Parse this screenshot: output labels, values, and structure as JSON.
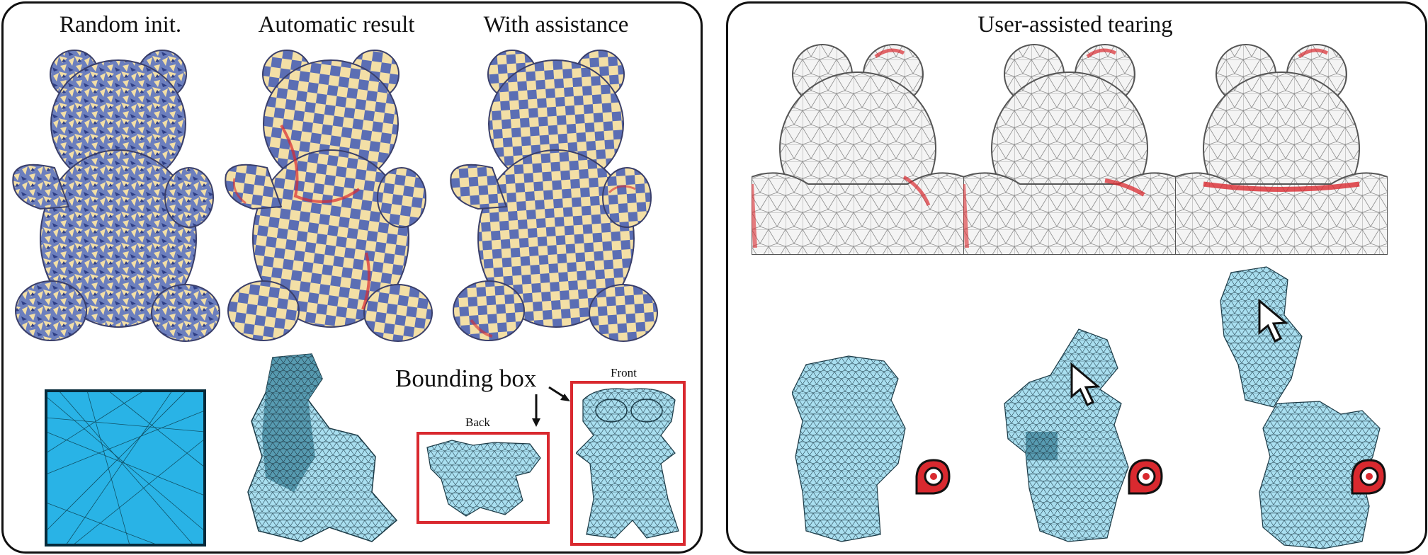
{
  "left_panel": {
    "columns": [
      {
        "title": "Random init."
      },
      {
        "title": "Automatic result"
      },
      {
        "title": "With assistance"
      }
    ],
    "annotations": {
      "bounding_box": "Bounding box",
      "back": "Back",
      "front": "Front"
    }
  },
  "right_panel": {
    "title": "User-assisted tearing"
  },
  "colors": {
    "checker_blue": "#5b6eb4",
    "checker_cream": "#f3dfa6",
    "mesh_light_blue": "#a9dff0",
    "mesh_dark_blue": "#4e93aa",
    "square_fill": "#29b3e6",
    "highlight_red": "#d9292f"
  }
}
